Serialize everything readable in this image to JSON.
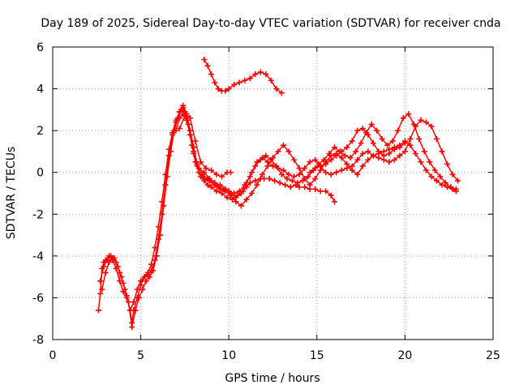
{
  "chart_data": {
    "type": "scatter",
    "title": "Day 189 of 2025, Sidereal Day-to-day VTEC variation (SDTVAR) for receiver cnda",
    "xlabel": "GPS time / hours",
    "ylabel": "SDTVAR / TECUs",
    "xlim": [
      0,
      25
    ],
    "ylim": [
      -8,
      6
    ],
    "xticks": [
      0,
      5,
      10,
      15,
      20,
      25
    ],
    "yticks": [
      -8,
      -6,
      -4,
      -2,
      0,
      2,
      4,
      6
    ],
    "xtick_labels": [
      "0",
      "5",
      "10",
      "15",
      "20",
      "25"
    ],
    "ytick_labels": [
      "-8",
      "-6",
      "-4",
      "-2",
      "0",
      "2",
      "4",
      "6"
    ],
    "grid": true,
    "legend": "none",
    "marker": "plus",
    "color": "#ff0000",
    "series": [
      {
        "x": [
          2.6,
          2.7,
          2.8,
          2.9,
          3.0,
          3.2,
          3.4,
          3.6,
          3.8,
          4.0,
          4.2,
          4.4,
          4.5,
          4.6,
          4.8,
          5.0,
          5.2,
          5.4,
          5.6,
          5.8,
          6.0,
          6.2,
          6.4,
          6.6,
          6.8,
          7.0,
          7.2,
          7.4,
          7.6,
          7.8,
          8.0,
          8.2,
          8.4,
          8.6,
          8.8,
          9.0,
          9.3,
          9.6,
          9.9,
          10.2,
          10.5,
          10.8,
          11.0,
          11.2,
          11.5,
          11.8,
          12.0,
          12.3,
          12.6,
          12.9,
          13.2,
          13.5,
          13.8,
          14.0,
          14.3,
          14.6,
          14.9,
          15.2,
          15.5,
          15.8,
          16.0
        ],
        "y": [
          -6.6,
          -5.8,
          -4.6,
          -4.3,
          -4.2,
          -4.0,
          -4.2,
          -4.6,
          -5.2,
          -5.7,
          -6.0,
          -6.6,
          -7.2,
          -6.6,
          -6.0,
          -5.4,
          -5.0,
          -4.9,
          -4.7,
          -4.2,
          -3.2,
          -2.0,
          -0.6,
          0.8,
          1.8,
          2.4,
          2.9,
          3.1,
          2.7,
          1.8,
          0.9,
          0.3,
          -0.2,
          -0.4,
          -0.6,
          -0.7,
          -0.9,
          -1.0,
          -1.2,
          -1.3,
          -1.1,
          -0.9,
          -0.7,
          -0.5,
          -0.4,
          -0.3,
          -0.3,
          -0.3,
          -0.4,
          -0.5,
          -0.6,
          -0.7,
          -0.6,
          -0.7,
          -0.7,
          -0.8,
          -0.8,
          -0.9,
          -0.9,
          -1.1,
          -1.4
        ]
      },
      {
        "x": [
          2.7,
          2.9,
          3.1,
          3.3,
          3.5,
          3.7,
          3.9,
          4.1,
          4.3,
          4.5,
          4.7,
          4.9,
          5.1,
          5.3,
          5.5,
          5.7,
          5.9,
          6.1,
          6.3,
          6.5,
          6.7,
          6.9,
          7.1,
          7.3,
          7.5,
          7.7,
          7.9,
          8.1,
          8.3,
          8.6,
          8.9,
          9.2,
          9.5,
          9.8,
          10.1,
          10.4,
          10.7,
          11.0,
          11.3,
          11.6,
          11.9,
          12.2,
          12.5,
          12.8,
          13.1,
          13.4,
          13.7,
          14.0,
          14.3,
          14.6,
          14.9,
          15.2,
          15.5,
          15.8,
          16.1,
          16.4,
          16.7,
          17.0,
          17.3,
          17.6,
          17.9,
          18.2,
          18.5,
          18.8,
          19.1,
          19.4,
          19.7,
          20.0,
          20.3,
          20.6,
          20.9,
          21.2,
          21.5,
          21.8,
          22.1,
          22.4,
          22.7,
          22.9
        ],
        "y": [
          -5.2,
          -4.5,
          -4.2,
          -4.0,
          -4.1,
          -4.5,
          -5.0,
          -5.6,
          -6.2,
          -7.4,
          -6.6,
          -6.0,
          -5.6,
          -5.2,
          -5.0,
          -4.7,
          -4.0,
          -3.0,
          -1.6,
          -0.2,
          1.0,
          2.0,
          2.6,
          3.0,
          2.9,
          2.3,
          1.3,
          0.5,
          0.0,
          -0.3,
          -0.4,
          -0.6,
          -0.8,
          -0.9,
          -1.1,
          -1.4,
          -1.6,
          -1.3,
          -1.0,
          -0.6,
          -0.1,
          0.3,
          0.7,
          1.0,
          1.3,
          1.0,
          0.6,
          0.2,
          -0.3,
          -0.6,
          -0.3,
          0.1,
          0.5,
          0.8,
          0.9,
          0.7,
          0.4,
          0.1,
          -0.1,
          0.3,
          0.6,
          0.8,
          0.9,
          1.0,
          1.1,
          1.2,
          1.3,
          1.5,
          1.3,
          0.9,
          0.5,
          0.1,
          -0.2,
          -0.4,
          -0.6,
          -0.7,
          -0.8,
          -0.9
        ]
      },
      {
        "x": [
          2.8,
          3.0,
          3.2,
          3.4,
          3.6,
          3.8,
          4.0,
          4.2,
          4.4,
          4.6,
          4.8,
          5.0,
          5.2,
          5.4,
          5.6,
          5.8,
          6.0,
          6.2,
          6.4,
          6.6,
          6.8,
          7.0,
          7.2,
          7.4,
          7.6,
          7.8,
          8.0,
          8.2,
          8.5,
          8.8,
          9.1,
          9.4,
          9.7,
          10.0,
          10.3,
          10.6,
          10.9,
          11.2,
          11.5,
          11.8,
          12.1,
          12.4,
          12.7,
          13.0,
          13.3,
          13.6,
          13.9,
          14.2,
          14.5,
          14.8,
          15.1,
          15.4,
          15.7,
          16.0,
          16.3,
          16.6,
          16.9,
          17.2,
          17.5,
          17.8,
          18.1,
          18.4,
          18.7,
          19.0,
          19.3,
          19.6,
          19.9,
          20.2,
          20.5,
          20.8,
          21.1,
          21.4,
          21.7,
          22.0,
          22.3,
          22.6,
          22.9
        ],
        "y": [
          -5.6,
          -4.8,
          -4.3,
          -4.1,
          -4.3,
          -4.8,
          -5.3,
          -5.9,
          -6.6,
          -6.2,
          -5.6,
          -5.2,
          -5.0,
          -4.8,
          -4.4,
          -3.6,
          -2.6,
          -1.4,
          -0.1,
          1.1,
          1.9,
          2.5,
          2.9,
          3.2,
          2.8,
          2.0,
          1.2,
          0.4,
          -0.1,
          -0.3,
          -0.5,
          -0.7,
          -0.8,
          -0.9,
          -1.0,
          -0.9,
          -0.6,
          -0.2,
          0.3,
          0.6,
          0.8,
          0.6,
          0.3,
          -0.1,
          -0.3,
          -0.4,
          -0.5,
          -0.4,
          -0.2,
          0.1,
          0.4,
          0.6,
          0.9,
          1.2,
          1.0,
          0.8,
          0.7,
          1.0,
          1.4,
          1.9,
          2.3,
          2.0,
          1.6,
          1.3,
          1.5,
          2.0,
          2.6,
          2.8,
          2.3,
          1.6,
          1.0,
          0.5,
          0.1,
          -0.2,
          -0.5,
          -0.7,
          -0.8
        ]
      },
      {
        "x": [
          7.0,
          7.2,
          7.4,
          7.6,
          7.8,
          8.0,
          8.3,
          8.6,
          8.9,
          9.2,
          9.5,
          9.8,
          10.1,
          10.4,
          10.7,
          11.0,
          11.3,
          11.6,
          11.9,
          12.2,
          12.5,
          12.8,
          13.1,
          13.4,
          13.7,
          14.0,
          14.3,
          14.6,
          14.9,
          15.2,
          15.5,
          15.8,
          16.1,
          16.4,
          16.7,
          17.0,
          17.3,
          17.6,
          17.9,
          18.2,
          18.5,
          18.8,
          19.1,
          19.4,
          19.7,
          20.0,
          20.3,
          20.6,
          20.9,
          21.2,
          21.5,
          21.8,
          22.1,
          22.4,
          22.7,
          23.0
        ],
        "y": [
          2.0,
          2.6,
          2.8,
          2.5,
          1.8,
          1.0,
          0.2,
          0.0,
          -0.3,
          -0.5,
          -0.6,
          -0.8,
          -1.0,
          -1.2,
          -1.0,
          -0.5,
          0.0,
          0.5,
          0.7,
          0.5,
          0.3,
          0.2,
          0.1,
          -0.1,
          -0.2,
          -0.1,
          0.2,
          0.5,
          0.6,
          0.3,
          0.0,
          -0.1,
          0.0,
          0.1,
          0.2,
          0.3,
          0.6,
          0.9,
          1.0,
          0.8,
          0.7,
          0.6,
          0.5,
          0.6,
          0.8,
          1.0,
          1.6,
          2.2,
          2.5,
          2.4,
          2.2,
          1.6,
          1.0,
          0.4,
          -0.1,
          -0.4
        ]
      },
      {
        "x": [
          7.2,
          7.5,
          7.8,
          8.1,
          8.4,
          8.7,
          9.0,
          9.3,
          9.6,
          9.9,
          10.1
        ],
        "y": [
          2.1,
          2.7,
          2.6,
          1.5,
          0.5,
          0.2,
          0.1,
          -0.1,
          -0.2,
          0.0,
          0.0
        ]
      },
      {
        "x": [
          8.6,
          8.8,
          9.0,
          9.2,
          9.4,
          9.6,
          9.8,
          10.0,
          10.3,
          10.6,
          10.9,
          11.2,
          11.5,
          11.8,
          12.1,
          12.4,
          12.7,
          13.0
        ],
        "y": [
          5.4,
          5.1,
          4.7,
          4.3,
          4.0,
          3.9,
          3.9,
          4.0,
          4.2,
          4.3,
          4.4,
          4.5,
          4.7,
          4.8,
          4.7,
          4.4,
          4.0,
          3.8
        ]
      },
      {
        "x": [
          14.6,
          14.9,
          15.2,
          15.5,
          15.8,
          16.1,
          16.4,
          16.7,
          17.0,
          17.3,
          17.6,
          17.9,
          18.2,
          18.5,
          18.8,
          19.1,
          19.4,
          19.7,
          20.0
        ],
        "y": [
          0.0,
          0.2,
          0.3,
          0.4,
          0.6,
          0.8,
          1.0,
          1.2,
          1.5,
          2.0,
          2.1,
          1.8,
          1.4,
          1.0,
          0.8,
          0.9,
          1.1,
          1.2,
          1.4
        ]
      }
    ]
  }
}
